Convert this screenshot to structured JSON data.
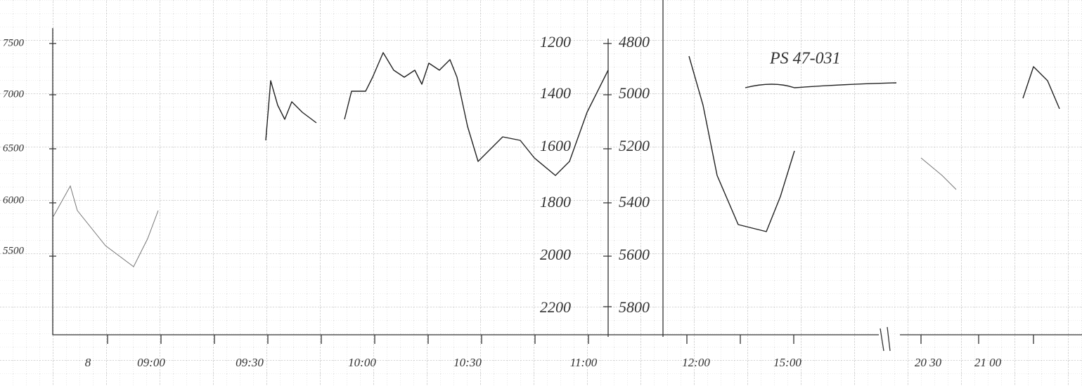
{
  "annotation": "PS 47-031",
  "left_axis": [
    "7500",
    "7000",
    "6500",
    "6000",
    "5500"
  ],
  "inner_axis_left": [
    "1200",
    "1400",
    "1600",
    "1800",
    "2000",
    "2200"
  ],
  "inner_axis_right": [
    "4800",
    "5000",
    "5200",
    "5400",
    "5600",
    "5800"
  ],
  "x_labels": [
    "8",
    "09:00",
    "09:30",
    "10:00",
    "10:30",
    "11:00",
    "12:00",
    "15:00",
    "20 30",
    "21 00"
  ]
}
